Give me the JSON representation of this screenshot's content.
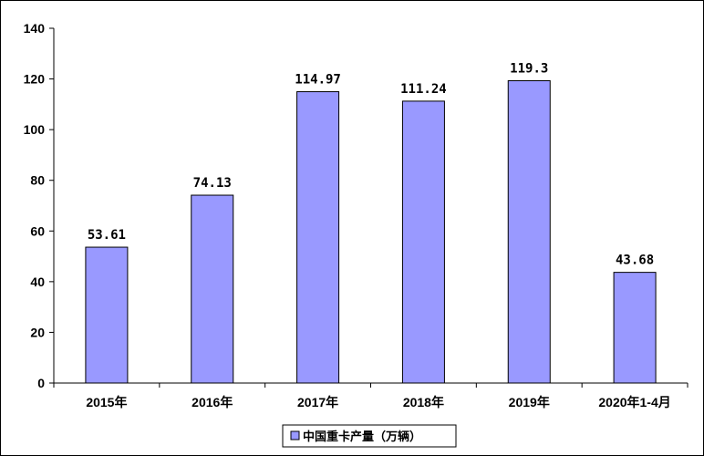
{
  "chart_data": {
    "type": "bar",
    "categories": [
      "2015年",
      "2016年",
      "2017年",
      "2018年",
      "2019年",
      "2020年1-4月"
    ],
    "series": [
      {
        "name": "中国重卡产量（万辆）",
        "values": [
          53.61,
          74.13,
          114.97,
          111.24,
          119.3,
          43.68
        ]
      }
    ],
    "data_labels": [
      "53.61",
      "74.13",
      "114.97",
      "111.24",
      "119.3",
      "43.68"
    ],
    "yticks": [
      "0",
      "20",
      "40",
      "60",
      "80",
      "100",
      "120",
      "140"
    ],
    "ylim": [
      0,
      140
    ],
    "grid": false,
    "legend_position": "bottom-center",
    "bar_color": "#9999FF",
    "bar_border_color": "#000000"
  }
}
